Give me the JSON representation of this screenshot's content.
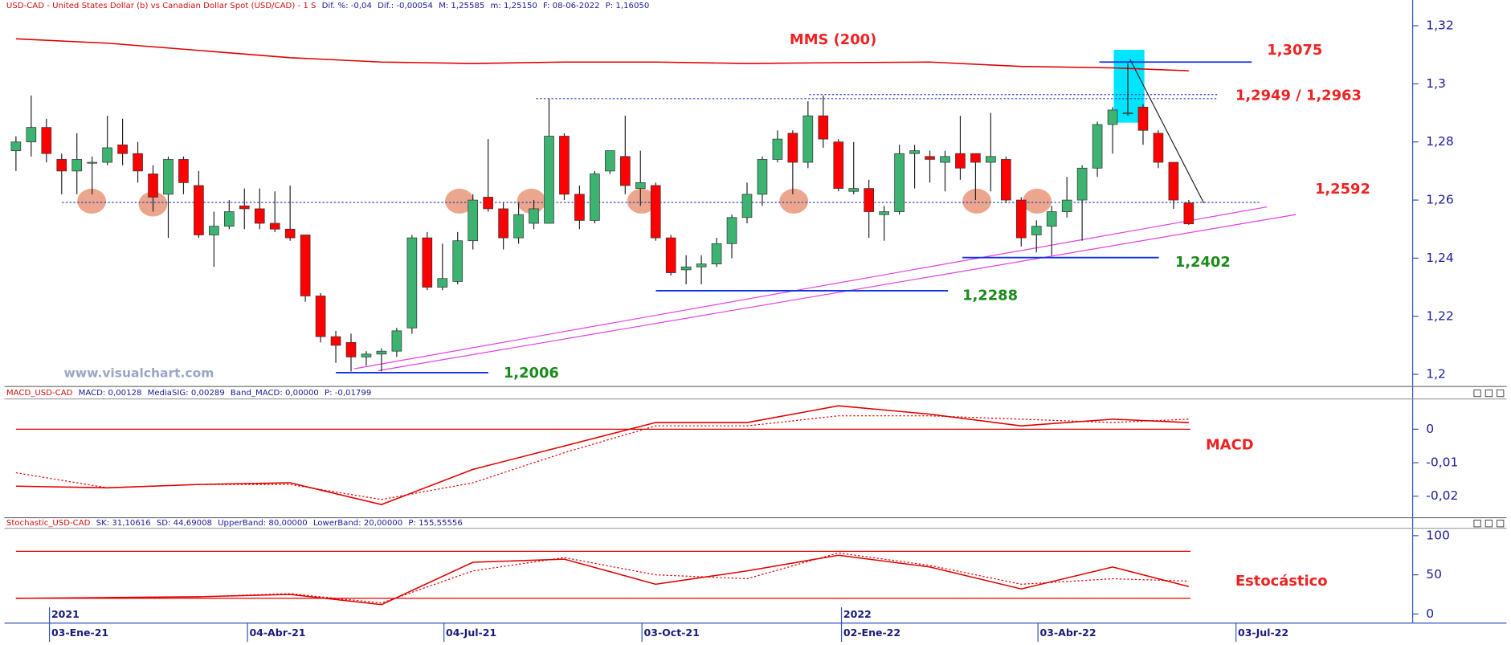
{
  "chart_data": [
    {
      "type": "candlestick",
      "header": [
        "USD-CAD - United States Dollar (b) vs Canadian Dollar Spot (USD/CAD) - 1 S",
        "Dif. %: -0,04",
        "Dif.: -0,00054",
        "M: 1,25585",
        "m: 1,25150",
        "F: 08-06-2022",
        "P: 1,16050"
      ],
      "watermark": "www.visualchart.com",
      "up_color": "#3cb371",
      "down_color": "#ff0000",
      "open": [
        1.277,
        1.28,
        1.285,
        1.274,
        1.27,
        1.273,
        1.273,
        1.279,
        1.276,
        1.269,
        1.262,
        1.274,
        1.265,
        1.248,
        1.251,
        1.258,
        1.257,
        1.252,
        1.25,
        1.248,
        1.227,
        1.213,
        1.211,
        1.206,
        1.207,
        1.208,
        1.216,
        1.247,
        1.23,
        1.232,
        1.246,
        1.261,
        1.257,
        1.247,
        1.252,
        1.252,
        1.282,
        1.262,
        1.253,
        1.27,
        1.275,
        1.264,
        1.265,
        1.247,
        1.236,
        1.237,
        1.238,
        1.245,
        1.254,
        1.262,
        1.274,
        1.283,
        1.273,
        1.289,
        1.28,
        1.263,
        1.264,
        1.255,
        1.256,
        1.276,
        1.275,
        1.273,
        1.276,
        1.276,
        1.273,
        1.274,
        1.26,
        1.248,
        1.251,
        1.256,
        1.26,
        1.271,
        1.286,
        1.29,
        1.292,
        1.283,
        1.273,
        1.259
      ],
      "high": [
        1.282,
        1.296,
        1.288,
        1.276,
        1.283,
        1.275,
        1.289,
        1.288,
        1.28,
        1.272,
        1.275,
        1.275,
        1.27,
        1.256,
        1.26,
        1.264,
        1.264,
        1.263,
        1.265,
        1.248,
        1.228,
        1.215,
        1.214,
        1.208,
        1.209,
        1.216,
        1.248,
        1.249,
        1.245,
        1.249,
        1.262,
        1.281,
        1.259,
        1.259,
        1.26,
        1.295,
        1.283,
        1.265,
        1.27,
        1.277,
        1.289,
        1.277,
        1.266,
        1.248,
        1.241,
        1.241,
        1.247,
        1.255,
        1.266,
        1.275,
        1.284,
        1.284,
        1.294,
        1.296,
        1.281,
        1.28,
        1.267,
        1.258,
        1.279,
        1.279,
        1.277,
        1.277,
        1.289,
        1.276,
        1.29,
        1.275,
        1.261,
        1.253,
        1.258,
        1.268,
        1.272,
        1.287,
        1.292,
        1.307,
        1.293,
        1.284,
        1.273,
        1.26
      ],
      "low": [
        1.27,
        1.275,
        1.273,
        1.262,
        1.262,
        1.262,
        1.272,
        1.272,
        1.266,
        1.256,
        1.247,
        1.262,
        1.247,
        1.237,
        1.25,
        1.25,
        1.25,
        1.249,
        1.246,
        1.225,
        1.211,
        1.204,
        1.201,
        1.203,
        1.201,
        1.206,
        1.214,
        1.229,
        1.229,
        1.231,
        1.243,
        1.256,
        1.243,
        1.245,
        1.25,
        1.252,
        1.26,
        1.25,
        1.252,
        1.269,
        1.262,
        1.258,
        1.246,
        1.234,
        1.231,
        1.231,
        1.237,
        1.24,
        1.252,
        1.258,
        1.273,
        1.262,
        1.271,
        1.278,
        1.263,
        1.262,
        1.247,
        1.246,
        1.255,
        1.264,
        1.266,
        1.263,
        1.267,
        1.26,
        1.263,
        1.259,
        1.244,
        1.242,
        1.241,
        1.254,
        1.246,
        1.268,
        1.276,
        1.289,
        1.279,
        1.271,
        1.257,
        1.2515
      ],
      "close": [
        1.28,
        1.285,
        1.276,
        1.27,
        1.274,
        1.273,
        1.278,
        1.276,
        1.27,
        1.261,
        1.274,
        1.266,
        1.248,
        1.251,
        1.256,
        1.257,
        1.252,
        1.25,
        1.247,
        1.227,
        1.213,
        1.21,
        1.206,
        1.207,
        1.208,
        1.215,
        1.247,
        1.23,
        1.233,
        1.246,
        1.26,
        1.257,
        1.247,
        1.255,
        1.257,
        1.282,
        1.262,
        1.253,
        1.269,
        1.277,
        1.265,
        1.266,
        1.247,
        1.235,
        1.237,
        1.238,
        1.245,
        1.254,
        1.262,
        1.274,
        1.281,
        1.273,
        1.289,
        1.281,
        1.264,
        1.264,
        1.256,
        1.256,
        1.276,
        1.277,
        1.274,
        1.275,
        1.271,
        1.273,
        1.275,
        1.26,
        1.247,
        1.251,
        1.256,
        1.26,
        1.271,
        1.286,
        1.291,
        1.29,
        1.284,
        1.273,
        1.26,
        1.2518
      ],
      "series": [
        {
          "name": "MMS (200)",
          "color": "#e00000",
          "x": [
            0,
            6,
            12,
            18,
            24,
            30,
            36,
            42,
            48,
            54,
            60,
            66,
            72,
            77
          ],
          "values": [
            1.3155,
            1.314,
            1.3115,
            1.309,
            1.3075,
            1.307,
            1.3075,
            1.3075,
            1.307,
            1.3073,
            1.3075,
            1.306,
            1.3055,
            1.3045
          ]
        }
      ],
      "levels": [
        {
          "values": [
            1.3075
          ],
          "label": "1,3075",
          "label_color": "#ee2222",
          "dashed": false
        },
        {
          "values": [
            1.2949,
            1.2963
          ],
          "label": "1,2949 / 1,2963",
          "label_color": "#ee2222",
          "dashed": true
        },
        {
          "values": [
            1.2592
          ],
          "label": "1,2592",
          "label_color": "#ee2222",
          "dashed": true
        },
        {
          "values": [
            1.2402
          ],
          "label": "1,2402",
          "label_color": "#1a8a1a",
          "dashed": false
        },
        {
          "values": [
            1.2288
          ],
          "label": "1,2288",
          "label_color": "#1a8a1a",
          "dashed": false
        },
        {
          "values": [
            1.2006
          ],
          "label": "1,2006",
          "label_color": "#1a8a1a",
          "dashed": false
        }
      ],
      "xlim": [
        -0.755,
        91.7
      ],
      "ylim": [
        1.196,
        1.3249
      ],
      "yticks": [
        {
          "value": 1.2,
          "label": "1,2"
        },
        {
          "value": 1.22,
          "label": "1,22"
        },
        {
          "value": 1.24,
          "label": "1,24"
        },
        {
          "value": 1.26,
          "label": "1,26"
        },
        {
          "value": 1.28,
          "label": "1,28"
        },
        {
          "value": 1.3,
          "label": "1,3"
        },
        {
          "value": 1.32,
          "label": "1,32"
        }
      ]
    },
    {
      "type": "line",
      "header": [
        "MACD_USD-CAD",
        "MACD: 0,00128",
        "MediaSIG: 0,00289",
        "Band_MACD: 0,00000",
        "P: -0,01799"
      ],
      "label": "MACD",
      "series": [
        {
          "color": "#e00000",
          "dashed": false,
          "x": [
            0,
            6,
            12,
            18,
            24,
            30,
            36,
            42,
            48,
            54,
            60,
            66,
            72,
            77
          ],
          "values": [
            -0.017,
            -0.0175,
            -0.0165,
            -0.016,
            -0.0225,
            -0.012,
            -0.005,
            0.002,
            0.002,
            0.007,
            0.0045,
            0.001,
            0.003,
            0.002
          ]
        },
        {
          "color": "#e00000",
          "dashed": true,
          "x": [
            0,
            6,
            12,
            18,
            24,
            30,
            36,
            42,
            48,
            54,
            60,
            66,
            72,
            77
          ],
          "values": [
            -0.013,
            -0.0175,
            -0.0165,
            -0.0165,
            -0.021,
            -0.016,
            -0.007,
            0.001,
            0.001,
            0.004,
            0.004,
            0.003,
            0.002,
            0.003
          ]
        }
      ],
      "ref_lines": [
        0
      ],
      "xlim": [
        -0.755,
        91.7
      ],
      "ylim": [
        -0.0263,
        0.0089
      ],
      "yticks": [
        {
          "value": -0.02,
          "label": "-0,02"
        },
        {
          "value": -0.01,
          "label": "-0,01"
        },
        0
      ]
    },
    {
      "type": "line",
      "header": [
        "Stochastic_USD-CAD",
        "SK: 31,10616",
        "SD: 44,69008",
        "UpperBand: 80,00000",
        "LowerBand: 20,00000",
        "P: 155,55556"
      ],
      "label": "Estocástico",
      "series": [
        {
          "color": "#e00000",
          "dashed": false,
          "x": [
            0,
            6,
            12,
            18,
            24,
            30,
            36,
            42,
            48,
            54,
            60,
            66,
            72,
            77
          ],
          "values": [
            20,
            21,
            22,
            25,
            12,
            66,
            70,
            38,
            55,
            75,
            60,
            32,
            60,
            35
          ]
        },
        {
          "color": "#e00000",
          "dashed": true,
          "x": [
            0,
            6,
            12,
            18,
            24,
            30,
            36,
            42,
            48,
            54,
            60,
            66,
            72,
            77
          ],
          "values": [
            20,
            20,
            22,
            26,
            14,
            55,
            72,
            50,
            45,
            78,
            62,
            38,
            45,
            42
          ]
        }
      ],
      "ref_lines": [
        80,
        20
      ],
      "xlim": [
        -0.755,
        91.7
      ],
      "ylim": [
        -11,
        110
      ],
      "yticks": [
        0,
        50,
        100
      ],
      "xticks": [
        {
          "value": 2.2,
          "label": "03-Ene-21"
        },
        {
          "value": 15.2,
          "label": "04-Abr-21"
        },
        {
          "value": 28.1,
          "label": "04-Jul-21"
        },
        {
          "value": 41.1,
          "label": "03-Oct-21"
        },
        {
          "value": 54.2,
          "label": "02-Ene-22"
        },
        {
          "value": 67.1,
          "label": "03-Abr-22"
        },
        {
          "value": 80.1,
          "label": "03-Jul-22"
        }
      ],
      "year_ticks": [
        {
          "value": 2.2,
          "label": "2021"
        },
        {
          "value": 54.2,
          "label": "2022"
        }
      ]
    }
  ]
}
